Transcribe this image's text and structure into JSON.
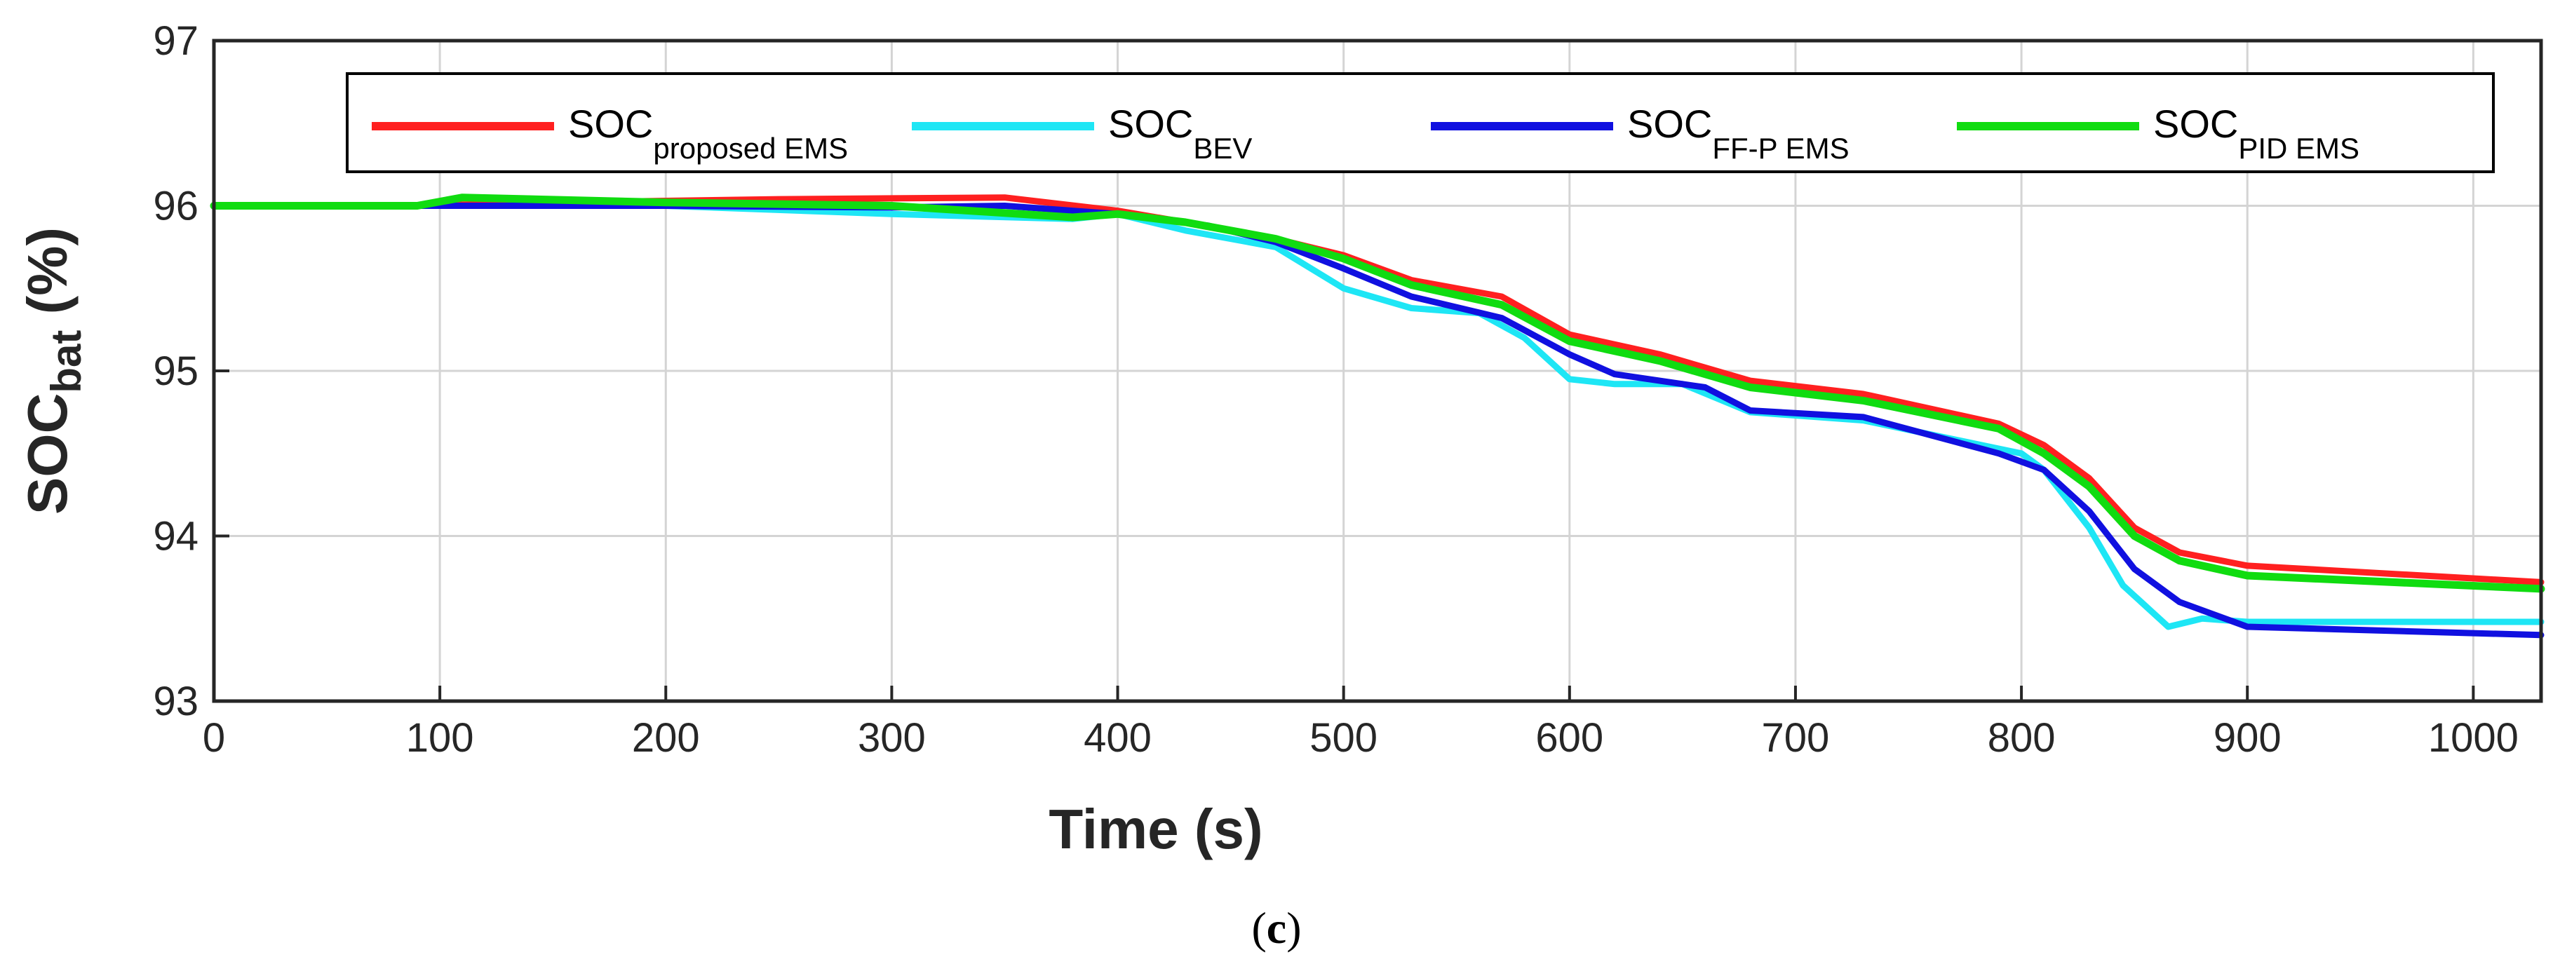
{
  "chart_data": {
    "type": "line",
    "xlabel": "Time (s)",
    "ylabel": {
      "main": "SOC",
      "sub": "bat",
      "unit": " (%)"
    },
    "xlim": [
      0,
      1030
    ],
    "ylim": [
      93,
      97
    ],
    "xticks": [
      "0",
      "100",
      "200",
      "300",
      "400",
      "500",
      "600",
      "700",
      "800",
      "900",
      "1000"
    ],
    "yticks": [
      "93",
      "94",
      "95",
      "96",
      "97"
    ],
    "grid": true,
    "legend_position": "top",
    "caption": {
      "open": "(",
      "letter": "c",
      "close": ")"
    },
    "series": [
      {
        "name": "SOC",
        "sub": "proposed EMS",
        "color": "#ff2020",
        "x": [
          0,
          90,
          150,
          250,
          350,
          400,
          430,
          470,
          500,
          530,
          570,
          600,
          640,
          680,
          730,
          790,
          810,
          830,
          850,
          870,
          900,
          1030
        ],
        "y": [
          96.0,
          96.0,
          96.02,
          96.04,
          96.05,
          95.97,
          95.9,
          95.8,
          95.7,
          95.55,
          95.45,
          95.22,
          95.1,
          94.94,
          94.86,
          94.68,
          94.55,
          94.35,
          94.05,
          93.9,
          93.82,
          93.72
        ]
      },
      {
        "name": "SOC",
        "sub": "BEV",
        "color": "#1ee6f5",
        "x": [
          0,
          90,
          200,
          300,
          380,
          400,
          430,
          470,
          500,
          530,
          560,
          580,
          600,
          620,
          650,
          680,
          730,
          800,
          810,
          830,
          845,
          865,
          880,
          900,
          1030
        ],
        "y": [
          96.0,
          96.0,
          96.0,
          95.95,
          95.92,
          95.95,
          95.85,
          95.75,
          95.5,
          95.38,
          95.35,
          95.2,
          94.95,
          94.92,
          94.92,
          94.75,
          94.7,
          94.5,
          94.4,
          94.05,
          93.7,
          93.45,
          93.5,
          93.48,
          93.48
        ]
      },
      {
        "name": "SOC",
        "sub": "FF-P EMS",
        "color": "#1010e0",
        "x": [
          0,
          90,
          200,
          300,
          350,
          380,
          400,
          440,
          470,
          500,
          530,
          570,
          600,
          620,
          660,
          680,
          730,
          790,
          810,
          830,
          850,
          870,
          900,
          1030
        ],
        "y": [
          96.0,
          96.0,
          96.0,
          95.99,
          96.0,
          95.97,
          95.95,
          95.88,
          95.78,
          95.62,
          95.45,
          95.32,
          95.1,
          94.98,
          94.9,
          94.76,
          94.72,
          94.5,
          94.4,
          94.15,
          93.8,
          93.6,
          93.45,
          93.4
        ]
      },
      {
        "name": "SOC",
        "sub": "PID EMS",
        "color": "#10dc10",
        "x": [
          0,
          90,
          110,
          200,
          300,
          380,
          400,
          430,
          470,
          500,
          530,
          570,
          600,
          640,
          680,
          730,
          790,
          810,
          830,
          850,
          870,
          900,
          1030
        ],
        "y": [
          96.0,
          96.0,
          96.05,
          96.02,
          96.0,
          95.93,
          95.95,
          95.9,
          95.8,
          95.68,
          95.52,
          95.4,
          95.18,
          95.06,
          94.9,
          94.82,
          94.65,
          94.5,
          94.3,
          94.0,
          93.85,
          93.76,
          93.68
        ]
      }
    ]
  }
}
